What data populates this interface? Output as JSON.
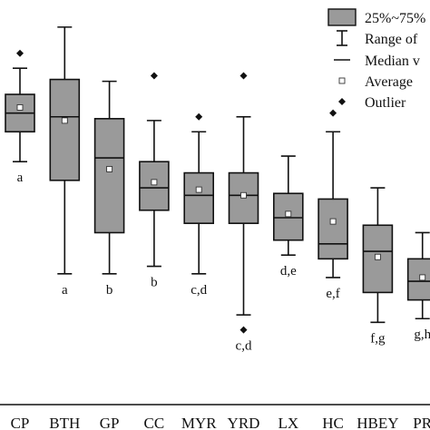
{
  "chart_data": {
    "type": "box",
    "title": "",
    "xlabel": "",
    "ylabel": "",
    "ylim": [
      0,
      100
    ],
    "categories": [
      "CP",
      "BTH",
      "GP",
      "CC",
      "MYR",
      "YRD",
      "LX",
      "HC",
      "HBEY",
      "PR"
    ],
    "boxes": [
      {
        "category": "CP",
        "min": 65,
        "q1": 73,
        "median": 78,
        "q3": 83,
        "max": 90,
        "mean": 79.5,
        "outliers": [
          94
        ],
        "group": "a"
      },
      {
        "category": "BTH",
        "min": 35,
        "q1": 60,
        "median": 77,
        "q3": 87,
        "max": 101,
        "mean": 76,
        "outliers": [],
        "group": "a"
      },
      {
        "category": "GP",
        "min": 35,
        "q1": 46,
        "median": 66,
        "q3": 76.5,
        "max": 86.5,
        "mean": 63,
        "outliers": [],
        "group": "b"
      },
      {
        "category": "CC",
        "min": 37,
        "q1": 52,
        "median": 58,
        "q3": 65,
        "max": 76,
        "mean": 59.5,
        "outliers": [
          88
        ],
        "group": "b"
      },
      {
        "category": "MYR",
        "min": 35,
        "q1": 48.5,
        "median": 56,
        "q3": 62,
        "max": 73,
        "mean": 57.5,
        "outliers": [
          77
        ],
        "group": "c,d"
      },
      {
        "category": "YRD",
        "min": 24,
        "q1": 48.5,
        "median": 56,
        "q3": 62,
        "max": 77,
        "mean": 56,
        "outliers": [
          20,
          88
        ],
        "group": "c,d"
      },
      {
        "category": "LX",
        "min": 40,
        "q1": 44,
        "median": 50,
        "q3": 56.5,
        "max": 66.5,
        "mean": 51,
        "outliers": [],
        "group": "d,e"
      },
      {
        "category": "HC",
        "min": 34,
        "q1": 39,
        "median": 43,
        "q3": 55,
        "max": 73,
        "mean": 49,
        "outliers": [
          78
        ],
        "group": "e,f"
      },
      {
        "category": "HBEY",
        "min": 22,
        "q1": 30,
        "median": 41,
        "q3": 48,
        "max": 58,
        "mean": 39.5,
        "outliers": [],
        "group": "f,g"
      },
      {
        "category": "PR",
        "min": 23,
        "q1": 28,
        "median": 33,
        "q3": 39,
        "max": 46,
        "mean": 34,
        "outliers": [],
        "group": "g,h"
      }
    ],
    "legend": {
      "position": "top-right",
      "entries": [
        "25%~75%",
        "Range of",
        "Median v",
        "Average",
        "Outlier"
      ]
    },
    "colors": {
      "box_fill": "#9a9a9a",
      "stroke": "#111111",
      "background": "#ffffff"
    }
  }
}
